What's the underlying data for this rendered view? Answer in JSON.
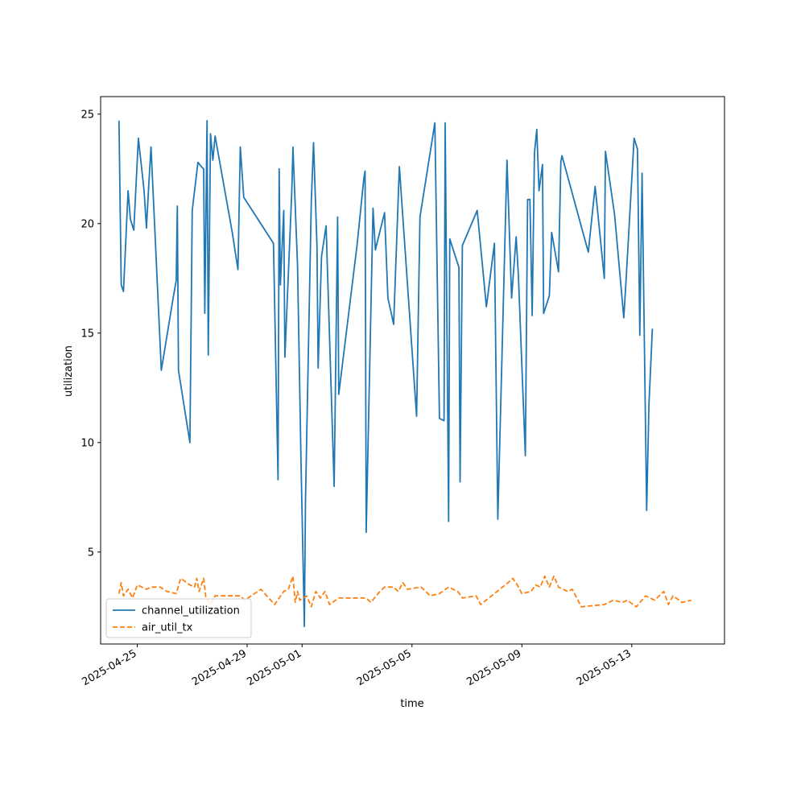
{
  "chart_data": {
    "type": "line",
    "title": "",
    "xlabel": "time",
    "ylabel": "utilization",
    "x_axis_type": "date",
    "xlim": [
      "2025-04-23T16:00",
      "2025-05-16T09:00"
    ],
    "ylim": [
      0.8,
      25.8
    ],
    "x_ticks": [
      "2025-04-25",
      "2025-04-29",
      "2025-05-01",
      "2025-05-05",
      "2025-05-09",
      "2025-05-13"
    ],
    "y_ticks": [
      5,
      10,
      15,
      20,
      25
    ],
    "grid": false,
    "legend_position": "lower-left",
    "series": [
      {
        "name": "channel_utilization",
        "color": "#1f77b4",
        "style": "solid",
        "points": [
          [
            "2025-04-24T08:00",
            24.7
          ],
          [
            "2025-04-24T10:00",
            17.2
          ],
          [
            "2025-04-24T12:00",
            16.9
          ],
          [
            "2025-04-24T16:00",
            21.5
          ],
          [
            "2025-04-24T18:00",
            20.2
          ],
          [
            "2025-04-24T21:00",
            19.7
          ],
          [
            "2025-04-25T01:00",
            23.9
          ],
          [
            "2025-04-25T06:00",
            21.5
          ],
          [
            "2025-04-25T08:00",
            19.8
          ],
          [
            "2025-04-25T10:00",
            21.7
          ],
          [
            "2025-04-25T12:00",
            23.5
          ],
          [
            "2025-04-25T21:00",
            13.3
          ],
          [
            "2025-04-26T07:00",
            16.5
          ],
          [
            "2025-04-26T10:00",
            17.4
          ],
          [
            "2025-04-26T11:00",
            20.8
          ],
          [
            "2025-04-26T12:00",
            13.3
          ],
          [
            "2025-04-26T22:00",
            10.0
          ],
          [
            "2025-04-27T00:00",
            20.6
          ],
          [
            "2025-04-27T05:00",
            22.8
          ],
          [
            "2025-04-27T08:00",
            22.6
          ],
          [
            "2025-04-27T10:00",
            22.5
          ],
          [
            "2025-04-27T11:00",
            15.9
          ],
          [
            "2025-04-27T13:00",
            24.7
          ],
          [
            "2025-04-27T14:00",
            14.0
          ],
          [
            "2025-04-27T16:00",
            24.1
          ],
          [
            "2025-04-27T18:00",
            22.9
          ],
          [
            "2025-04-27T20:00",
            24.0
          ],
          [
            "2025-04-28T11:00",
            19.6
          ],
          [
            "2025-04-28T16:00",
            17.9
          ],
          [
            "2025-04-28T18:00",
            23.5
          ],
          [
            "2025-04-28T21:00",
            21.2
          ],
          [
            "2025-04-29T23:00",
            19.1
          ],
          [
            "2025-04-30T03:00",
            8.3
          ],
          [
            "2025-04-30T04:00",
            22.5
          ],
          [
            "2025-04-30T05:00",
            17.2
          ],
          [
            "2025-04-30T08:00",
            20.6
          ],
          [
            "2025-04-30T09:00",
            13.9
          ],
          [
            "2025-04-30T15:00",
            21.5
          ],
          [
            "2025-04-30T16:00",
            23.5
          ],
          [
            "2025-04-30T20:00",
            18.1
          ],
          [
            "2025-04-30T23:00",
            9.2
          ],
          [
            "2025-05-01T02:00",
            1.6
          ],
          [
            "2025-05-01T03:00",
            7.4
          ],
          [
            "2025-05-01T08:00",
            21.0
          ],
          [
            "2025-05-01T10:00",
            23.7
          ],
          [
            "2025-05-01T13:00",
            18.9
          ],
          [
            "2025-05-01T14:00",
            13.4
          ],
          [
            "2025-05-01T17:00",
            18.5
          ],
          [
            "2025-05-01T21:00",
            19.9
          ],
          [
            "2025-05-02T04:00",
            8.0
          ],
          [
            "2025-05-02T07:00",
            20.3
          ],
          [
            "2025-05-02T08:00",
            12.2
          ],
          [
            "2025-05-03T00:00",
            19.0
          ],
          [
            "2025-05-03T06:00",
            22.1
          ],
          [
            "2025-05-03T07:00",
            22.4
          ],
          [
            "2025-05-03T08:00",
            5.9
          ],
          [
            "2025-05-03T14:00",
            20.7
          ],
          [
            "2025-05-03T16:00",
            18.8
          ],
          [
            "2025-05-04T00:00",
            20.5
          ],
          [
            "2025-05-04T03:00",
            16.6
          ],
          [
            "2025-05-04T08:00",
            15.4
          ],
          [
            "2025-05-04T13:00",
            22.6
          ],
          [
            "2025-05-05T04:00",
            11.2
          ],
          [
            "2025-05-05T07:00",
            20.3
          ],
          [
            "2025-05-05T20:00",
            24.6
          ],
          [
            "2025-05-06T00:00",
            11.1
          ],
          [
            "2025-05-06T04:00",
            11.0
          ],
          [
            "2025-05-06T05:00",
            24.6
          ],
          [
            "2025-05-06T08:00",
            6.4
          ],
          [
            "2025-05-06T09:00",
            19.3
          ],
          [
            "2025-05-06T17:00",
            18.0
          ],
          [
            "2025-05-06T18:00",
            8.2
          ],
          [
            "2025-05-06T20:00",
            19.0
          ],
          [
            "2025-05-07T09:00",
            20.6
          ],
          [
            "2025-05-07T17:00",
            16.2
          ],
          [
            "2025-05-08T00:00",
            19.1
          ],
          [
            "2025-05-08T03:00",
            6.5
          ],
          [
            "2025-05-08T11:00",
            22.9
          ],
          [
            "2025-05-08T15:00",
            16.6
          ],
          [
            "2025-05-08T19:00",
            19.4
          ],
          [
            "2025-05-08T21:00",
            17.6
          ],
          [
            "2025-05-09T03:00",
            9.4
          ],
          [
            "2025-05-09T05:00",
            21.1
          ],
          [
            "2025-05-09T07:00",
            21.1
          ],
          [
            "2025-05-09T09:00",
            15.8
          ],
          [
            "2025-05-09T11:00",
            23.2
          ],
          [
            "2025-05-09T13:00",
            24.3
          ],
          [
            "2025-05-09T15:00",
            21.5
          ],
          [
            "2025-05-09T18:00",
            22.7
          ],
          [
            "2025-05-09T19:00",
            15.9
          ],
          [
            "2025-05-10T00:00",
            16.7
          ],
          [
            "2025-05-10T02:00",
            19.6
          ],
          [
            "2025-05-10T08:00",
            17.8
          ],
          [
            "2025-05-10T10:00",
            22.8
          ],
          [
            "2025-05-10T11:00",
            23.1
          ],
          [
            "2025-05-11T10:00",
            18.7
          ],
          [
            "2025-05-11T16:00",
            21.7
          ],
          [
            "2025-05-12T00:00",
            17.5
          ],
          [
            "2025-05-12T01:00",
            23.3
          ],
          [
            "2025-05-12T09:00",
            20.4
          ],
          [
            "2025-05-12T17:00",
            15.7
          ],
          [
            "2025-05-12T19:00",
            17.4
          ],
          [
            "2025-05-13T02:00",
            23.9
          ],
          [
            "2025-05-13T05:00",
            23.4
          ],
          [
            "2025-05-13T07:00",
            14.9
          ],
          [
            "2025-05-13T09:00",
            22.3
          ],
          [
            "2025-05-13T13:00",
            6.9
          ],
          [
            "2025-05-13T15:00",
            11.7
          ],
          [
            "2025-05-13T18:00",
            15.2
          ]
        ]
      },
      {
        "name": "air_util_tx",
        "color": "#ff7f0e",
        "style": "dashed",
        "points": [
          [
            "2025-04-24T08:00",
            3.1
          ],
          [
            "2025-04-24T10:00",
            3.6
          ],
          [
            "2025-04-24T12:00",
            3.0
          ],
          [
            "2025-04-24T16:00",
            3.3
          ],
          [
            "2025-04-24T20:00",
            2.9
          ],
          [
            "2025-04-25T00:00",
            3.5
          ],
          [
            "2025-04-25T08:00",
            3.3
          ],
          [
            "2025-04-25T12:00",
            3.4
          ],
          [
            "2025-04-25T20:00",
            3.4
          ],
          [
            "2025-04-26T02:00",
            3.2
          ],
          [
            "2025-04-26T10:00",
            3.1
          ],
          [
            "2025-04-26T14:00",
            3.8
          ],
          [
            "2025-04-26T22:00",
            3.5
          ],
          [
            "2025-04-27T02:00",
            3.4
          ],
          [
            "2025-04-27T04:00",
            3.8
          ],
          [
            "2025-04-27T06:00",
            3.2
          ],
          [
            "2025-04-27T10:00",
            3.8
          ],
          [
            "2025-04-27T12:00",
            2.9
          ],
          [
            "2025-04-27T16:00",
            2.6
          ],
          [
            "2025-04-27T20:00",
            3.0
          ],
          [
            "2025-04-28T18:00",
            3.0
          ],
          [
            "2025-04-28T22:00",
            2.8
          ],
          [
            "2025-04-29T12:00",
            3.3
          ],
          [
            "2025-04-30T00:00",
            2.6
          ],
          [
            "2025-04-30T08:00",
            3.2
          ],
          [
            "2025-04-30T12:00",
            3.3
          ],
          [
            "2025-04-30T16:00",
            3.9
          ],
          [
            "2025-04-30T18:00",
            2.7
          ],
          [
            "2025-04-30T20:00",
            3.2
          ],
          [
            "2025-04-30T22:00",
            2.8
          ],
          [
            "2025-05-01T04:00",
            3.0
          ],
          [
            "2025-05-01T08:00",
            2.5
          ],
          [
            "2025-05-01T12:00",
            3.2
          ],
          [
            "2025-05-01T16:00",
            2.9
          ],
          [
            "2025-05-01T20:00",
            3.2
          ],
          [
            "2025-05-02T00:00",
            2.6
          ],
          [
            "2025-05-02T08:00",
            2.9
          ],
          [
            "2025-05-03T08:00",
            2.9
          ],
          [
            "2025-05-03T12:00",
            2.7
          ],
          [
            "2025-05-03T20:00",
            3.2
          ],
          [
            "2025-05-04T00:00",
            3.4
          ],
          [
            "2025-05-04T08:00",
            3.4
          ],
          [
            "2025-05-04T12:00",
            3.2
          ],
          [
            "2025-05-04T16:00",
            3.6
          ],
          [
            "2025-05-04T20:00",
            3.3
          ],
          [
            "2025-05-05T08:00",
            3.4
          ],
          [
            "2025-05-05T16:00",
            3.0
          ],
          [
            "2025-05-06T00:00",
            3.1
          ],
          [
            "2025-05-06T08:00",
            3.4
          ],
          [
            "2025-05-06T16:00",
            3.2
          ],
          [
            "2025-05-06T20:00",
            2.9
          ],
          [
            "2025-05-07T08:00",
            3.0
          ],
          [
            "2025-05-07T12:00",
            2.6
          ],
          [
            "2025-05-08T00:00",
            3.1
          ],
          [
            "2025-05-08T12:00",
            3.6
          ],
          [
            "2025-05-08T16:00",
            3.8
          ],
          [
            "2025-05-08T20:00",
            3.5
          ],
          [
            "2025-05-09T00:00",
            3.1
          ],
          [
            "2025-05-09T08:00",
            3.2
          ],
          [
            "2025-05-09T12:00",
            3.5
          ],
          [
            "2025-05-09T16:00",
            3.4
          ],
          [
            "2025-05-09T20:00",
            3.9
          ],
          [
            "2025-05-10T00:00",
            3.4
          ],
          [
            "2025-05-10T04:00",
            3.9
          ],
          [
            "2025-05-10T08:00",
            3.4
          ],
          [
            "2025-05-10T16:00",
            3.2
          ],
          [
            "2025-05-10T20:00",
            3.3
          ],
          [
            "2025-05-11T04:00",
            2.5
          ],
          [
            "2025-05-12T00:00",
            2.6
          ],
          [
            "2025-05-12T08:00",
            2.8
          ],
          [
            "2025-05-12T16:00",
            2.7
          ],
          [
            "2025-05-12T20:00",
            2.8
          ],
          [
            "2025-05-13T04:00",
            2.5
          ],
          [
            "2025-05-13T12:00",
            3.0
          ],
          [
            "2025-05-13T20:00",
            2.8
          ],
          [
            "2025-05-14T04:00",
            3.2
          ],
          [
            "2025-05-14T08:00",
            2.6
          ],
          [
            "2025-05-14T12:00",
            3.0
          ],
          [
            "2025-05-14T20:00",
            2.7
          ],
          [
            "2025-05-15T04:00",
            2.8
          ]
        ]
      }
    ]
  }
}
